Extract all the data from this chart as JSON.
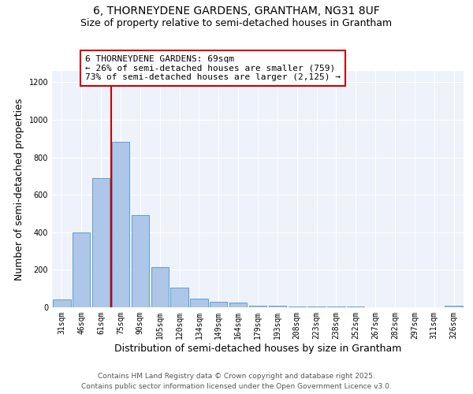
{
  "title_line1": "6, THORNEYDENE GARDENS, GRANTHAM, NG31 8UF",
  "title_line2": "Size of property relative to semi-detached houses in Grantham",
  "xlabel": "Distribution of semi-detached houses by size in Grantham",
  "ylabel": "Number of semi-detached properties",
  "categories": [
    "31sqm",
    "46sqm",
    "61sqm",
    "75sqm",
    "90sqm",
    "105sqm",
    "120sqm",
    "134sqm",
    "149sqm",
    "164sqm",
    "179sqm",
    "193sqm",
    "208sqm",
    "223sqm",
    "238sqm",
    "252sqm",
    "267sqm",
    "282sqm",
    "297sqm",
    "311sqm",
    "326sqm"
  ],
  "values": [
    40,
    400,
    690,
    880,
    490,
    215,
    105,
    45,
    30,
    25,
    10,
    8,
    5,
    3,
    3,
    3,
    2,
    1,
    1,
    1,
    8
  ],
  "bar_color": "#aec6e8",
  "bar_edge_color": "#5a9fd4",
  "property_line_color": "#cc0000",
  "property_line_x": 2.5,
  "annotation_text": "6 THORNEYDENE GARDENS: 69sqm\n← 26% of semi-detached houses are smaller (759)\n73% of semi-detached houses are larger (2,125) →",
  "annotation_box_color": "#cc0000",
  "ylim": [
    0,
    1260
  ],
  "yticks": [
    0,
    200,
    400,
    600,
    800,
    1000,
    1200
  ],
  "background_color": "#eef2fa",
  "footer_line1": "Contains HM Land Registry data © Crown copyright and database right 2025.",
  "footer_line2": "Contains public sector information licensed under the Open Government Licence v3.0.",
  "title_fontsize": 10,
  "subtitle_fontsize": 9,
  "axis_label_fontsize": 9,
  "tick_fontsize": 7,
  "footer_fontsize": 6.5,
  "annot_fontsize": 8
}
